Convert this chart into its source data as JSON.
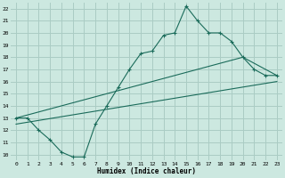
{
  "xlabel": "Humidex (Indice chaleur)",
  "xlim": [
    -0.5,
    23.5
  ],
  "ylim": [
    9.5,
    22.5
  ],
  "xticks": [
    0,
    1,
    2,
    3,
    4,
    5,
    6,
    7,
    8,
    9,
    10,
    11,
    12,
    13,
    14,
    15,
    16,
    17,
    18,
    19,
    20,
    21,
    22,
    23
  ],
  "yticks": [
    10,
    11,
    12,
    13,
    14,
    15,
    16,
    17,
    18,
    19,
    20,
    21,
    22
  ],
  "bg_color": "#cce8e0",
  "grid_color": "#aaccc4",
  "line_color": "#1a6b5a",
  "line1_x": [
    0,
    1,
    2,
    3,
    4,
    5,
    6,
    7,
    8,
    9,
    10,
    11,
    12,
    13,
    14,
    15,
    16,
    17,
    18,
    19,
    20,
    21,
    22,
    23
  ],
  "line1_y": [
    13.0,
    13.0,
    12.0,
    11.2,
    10.2,
    9.8,
    9.8,
    12.5,
    14.0,
    15.5,
    17.0,
    18.3,
    18.5,
    19.8,
    20.0,
    22.2,
    21.0,
    20.0,
    20.0,
    19.3,
    18.0,
    17.0,
    16.5,
    16.5
  ],
  "line2_x": [
    0,
    20,
    23
  ],
  "line2_y": [
    13.0,
    18.0,
    16.5
  ],
  "line3_x": [
    0,
    23
  ],
  "line3_y": [
    12.5,
    16.0
  ]
}
